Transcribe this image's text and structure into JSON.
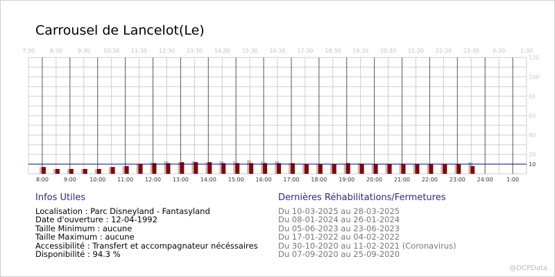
{
  "title": "Carrousel de Lancelot(Le)",
  "credit": "@DCPData",
  "colors": {
    "bar_dark": "#8b0000",
    "bar_light": "#bdbdbd",
    "ref_line": "#00008b",
    "grid": "#cccccc",
    "vline": "#555555",
    "top_ticks": "#c0c0c0",
    "bottom_ticks": "#333333"
  },
  "chart_data": {
    "type": "bar",
    "ylim": [
      0,
      120
    ],
    "y_ticks": [
      10,
      20,
      40,
      60,
      80,
      100,
      120
    ],
    "reference_line": 10,
    "grid": true,
    "x_top_ticks": [
      "7:30",
      "8:30",
      "9:30",
      "10:30",
      "11:30",
      "12:30",
      "13:30",
      "14:30",
      "15:30",
      "16:30",
      "17:30",
      "18:30",
      "19:30",
      "20:30",
      "21:30",
      "22:30",
      "23:30",
      "0:30",
      "1:30"
    ],
    "x_bottom_ticks": [
      "8:00",
      "9:00",
      "10:00",
      "11:00",
      "12:00",
      "13:00",
      "14:00",
      "15:00",
      "16:00",
      "17:00",
      "18:00",
      "19:00",
      "20:00",
      "21:00",
      "22:00",
      "23:00",
      "24:00",
      "1:00"
    ],
    "categories": [
      "8:00",
      "8:30",
      "9:00",
      "9:30",
      "10:00",
      "10:30",
      "11:00",
      "11:30",
      "12:00",
      "12:30",
      "13:00",
      "13:30",
      "14:00",
      "14:30",
      "15:00",
      "15:30",
      "16:00",
      "16:30",
      "17:00",
      "17:30",
      "18:00",
      "18:30",
      "19:00",
      "19:30",
      "20:00",
      "20:30",
      "21:00",
      "21:30",
      "22:00",
      "22:30",
      "23:00",
      "23:30"
    ],
    "series": [
      {
        "values": [
          7,
          5,
          5,
          5,
          5,
          7,
          8,
          10,
          11,
          11,
          12,
          12,
          12,
          11,
          11,
          11,
          11,
          11,
          11,
          10,
          10,
          10,
          11,
          10,
          10,
          10,
          10,
          10,
          10,
          10,
          10,
          8
        ]
      },
      {
        "values": [
          7,
          5,
          5,
          5,
          5,
          7,
          8,
          10,
          12,
          13,
          12,
          13,
          12,
          13,
          13,
          14,
          13,
          13,
          11,
          10,
          10,
          10,
          10,
          11,
          10,
          10,
          10,
          10,
          10,
          10,
          10,
          12
        ]
      }
    ]
  },
  "info": {
    "heading": "Infos Utiles",
    "lines": [
      "Localisation : Parc Disneyland - Fantasyland",
      "Date d'ouverture : 12-04-1992",
      "Taille Minimum : aucune",
      "Taille Maximum : aucune",
      "Accessibilité : Transfert et accompagnateur nécéssaires",
      "Disponibilité : 94.3 %"
    ]
  },
  "rehab": {
    "heading": "Dernières Réhabilitations/Fermetures",
    "lines": [
      "Du 10-03-2025 au 28-03-2025",
      "Du 08-01-2024 au 26-01-2024",
      "Du 05-06-2023 au 23-06-2023",
      "Du 17-01-2022 au 04-02-2022",
      "Du 30-10-2020 au 11-02-2021 (Coronavirus)",
      "Du 07-09-2020 au 25-09-2020"
    ]
  }
}
